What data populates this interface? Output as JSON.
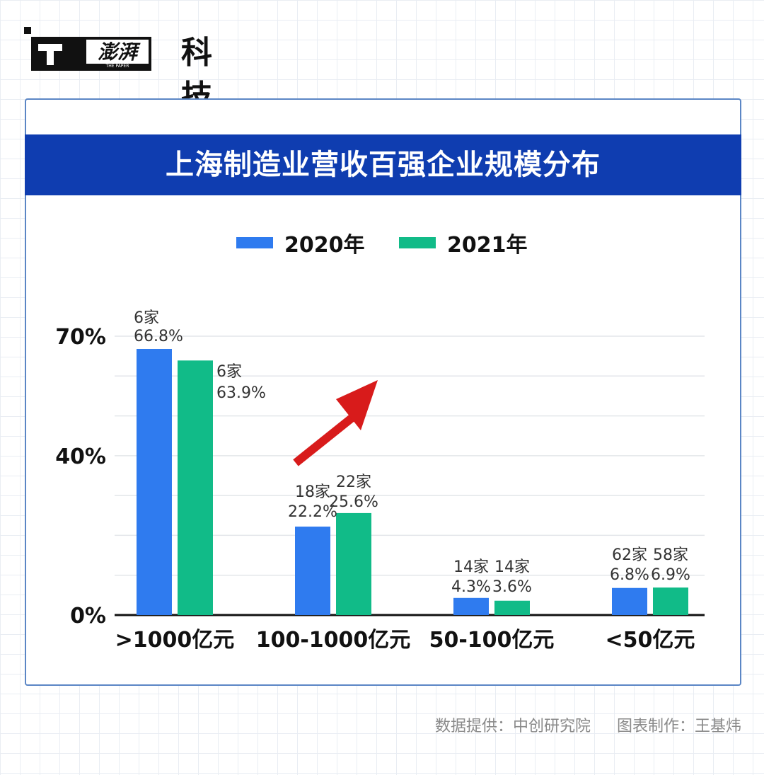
{
  "brand": {
    "logo_text": "科技"
  },
  "title": "上海制造业营收百强企业规模分布",
  "legend": [
    {
      "label": "2020年",
      "color": "#2f7bef"
    },
    {
      "label": "2021年",
      "color": "#11bb88"
    }
  ],
  "chart_data": {
    "type": "bar",
    "title": "上海制造业营收百强企业规模分布",
    "categories": [
      ">1000亿元",
      "100-1000亿元",
      "50-100亿元",
      "<50亿元"
    ],
    "series": [
      {
        "name": "2020年",
        "color": "#2f7bef",
        "values": [
          66.8,
          22.2,
          4.3,
          6.8
        ],
        "value_labels": [
          "66.8%",
          "22.2%",
          "4.3%",
          "6.8%"
        ],
        "count_labels": [
          "6家",
          "18家",
          "14家",
          "62家"
        ]
      },
      {
        "name": "2021年",
        "color": "#11bb88",
        "values": [
          63.9,
          25.6,
          3.6,
          6.9
        ],
        "value_labels": [
          "63.9%",
          "25.6%",
          "3.6%",
          "6.9%"
        ],
        "count_labels": [
          "6家",
          "22家",
          "14家",
          "58家"
        ]
      }
    ],
    "y_ticks": [
      "0%",
      "40%",
      "70%"
    ],
    "ylim": [
      0,
      70
    ],
    "grid": true,
    "annotation": "red arrow pointing up-right above 100-1000亿元"
  },
  "footer": {
    "source": "数据提供：中创研究院",
    "credit": "图表制作：王基炜"
  }
}
